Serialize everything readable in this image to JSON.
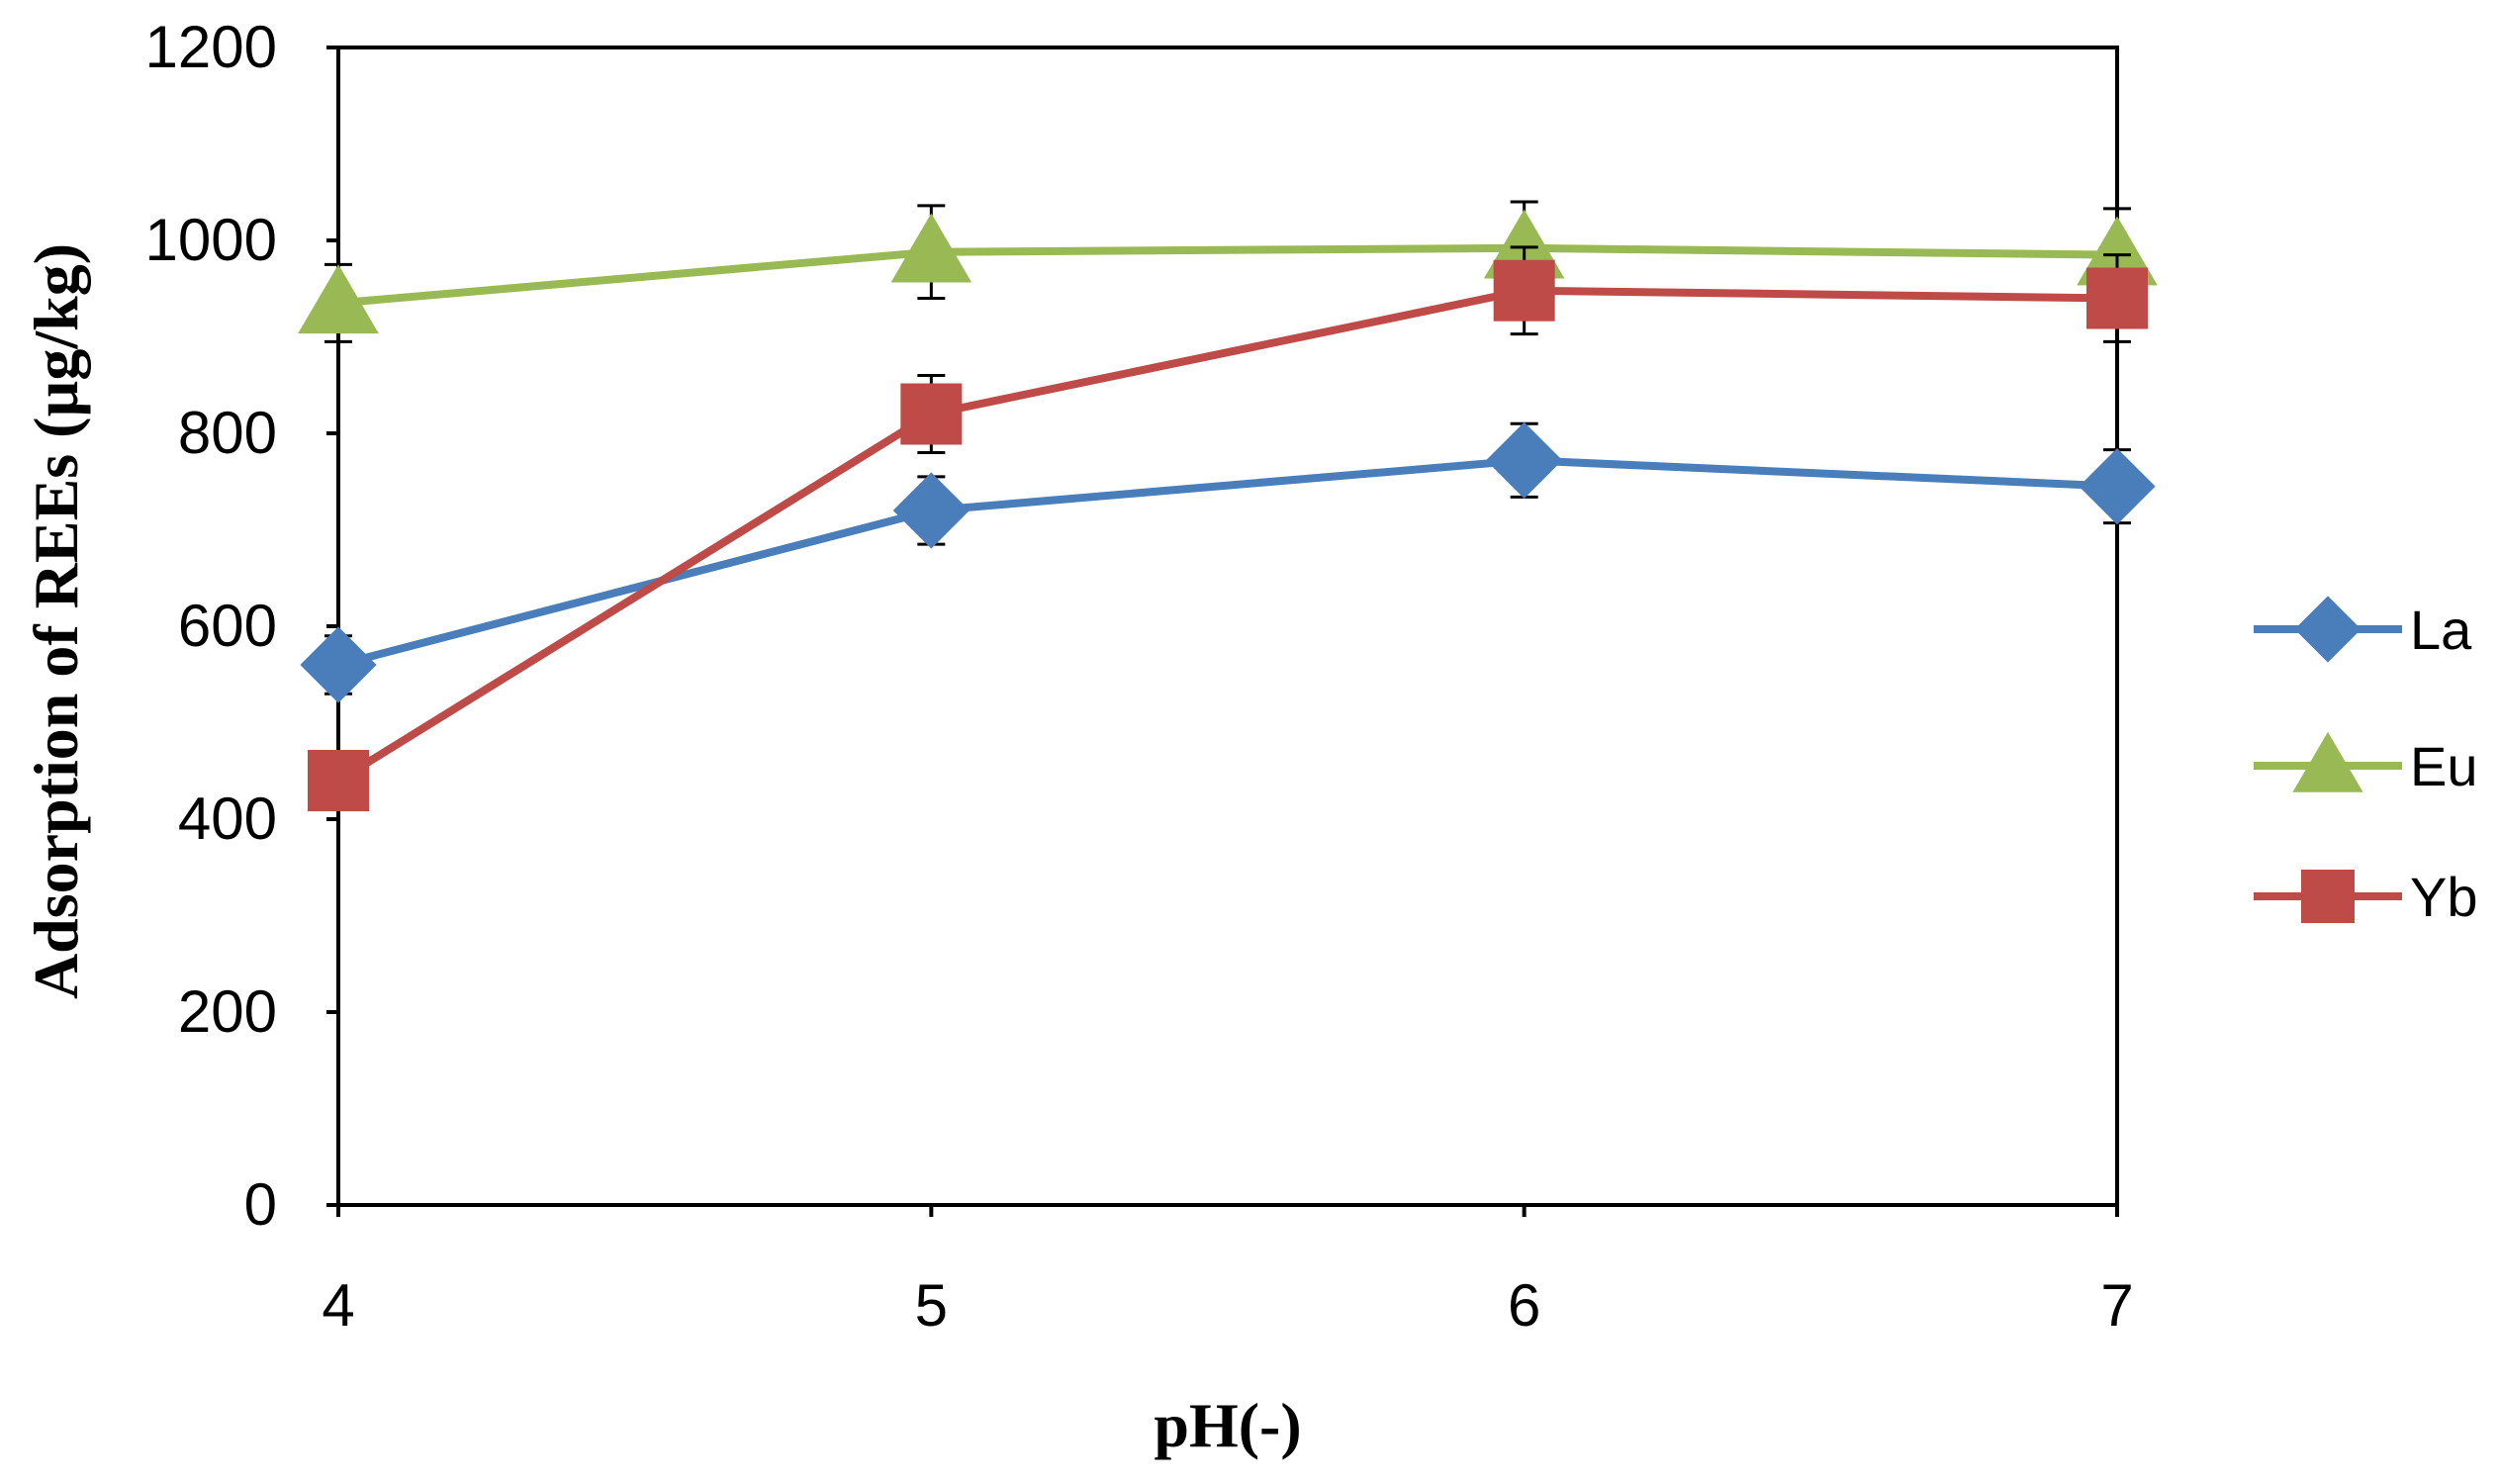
{
  "chart_data": {
    "type": "line",
    "title": "",
    "xlabel": "pH(-)",
    "ylabel": "Adsorption of REEs (µg/kg)",
    "x": [
      4,
      5,
      6,
      7
    ],
    "xlim": [
      4,
      7
    ],
    "ylim": [
      0,
      1200
    ],
    "yticks": [
      0,
      200,
      400,
      600,
      800,
      1000,
      1200
    ],
    "xticks": [
      4,
      5,
      6,
      7
    ],
    "grid": false,
    "legend_position": "right",
    "series": [
      {
        "name": "La",
        "color": "#4a7ebb",
        "marker": "diamond",
        "values": [
          560,
          720,
          772,
          745
        ],
        "errors": [
          30,
          35,
          38,
          38
        ]
      },
      {
        "name": "Eu",
        "color": "#98b954",
        "marker": "triangle",
        "values": [
          935,
          988,
          992,
          985
        ],
        "errors": [
          40,
          48,
          48,
          48
        ]
      },
      {
        "name": "Yb",
        "color": "#be4b48",
        "marker": "square",
        "values": [
          440,
          820,
          948,
          940
        ],
        "errors": [
          0,
          40,
          45,
          45
        ]
      }
    ]
  }
}
